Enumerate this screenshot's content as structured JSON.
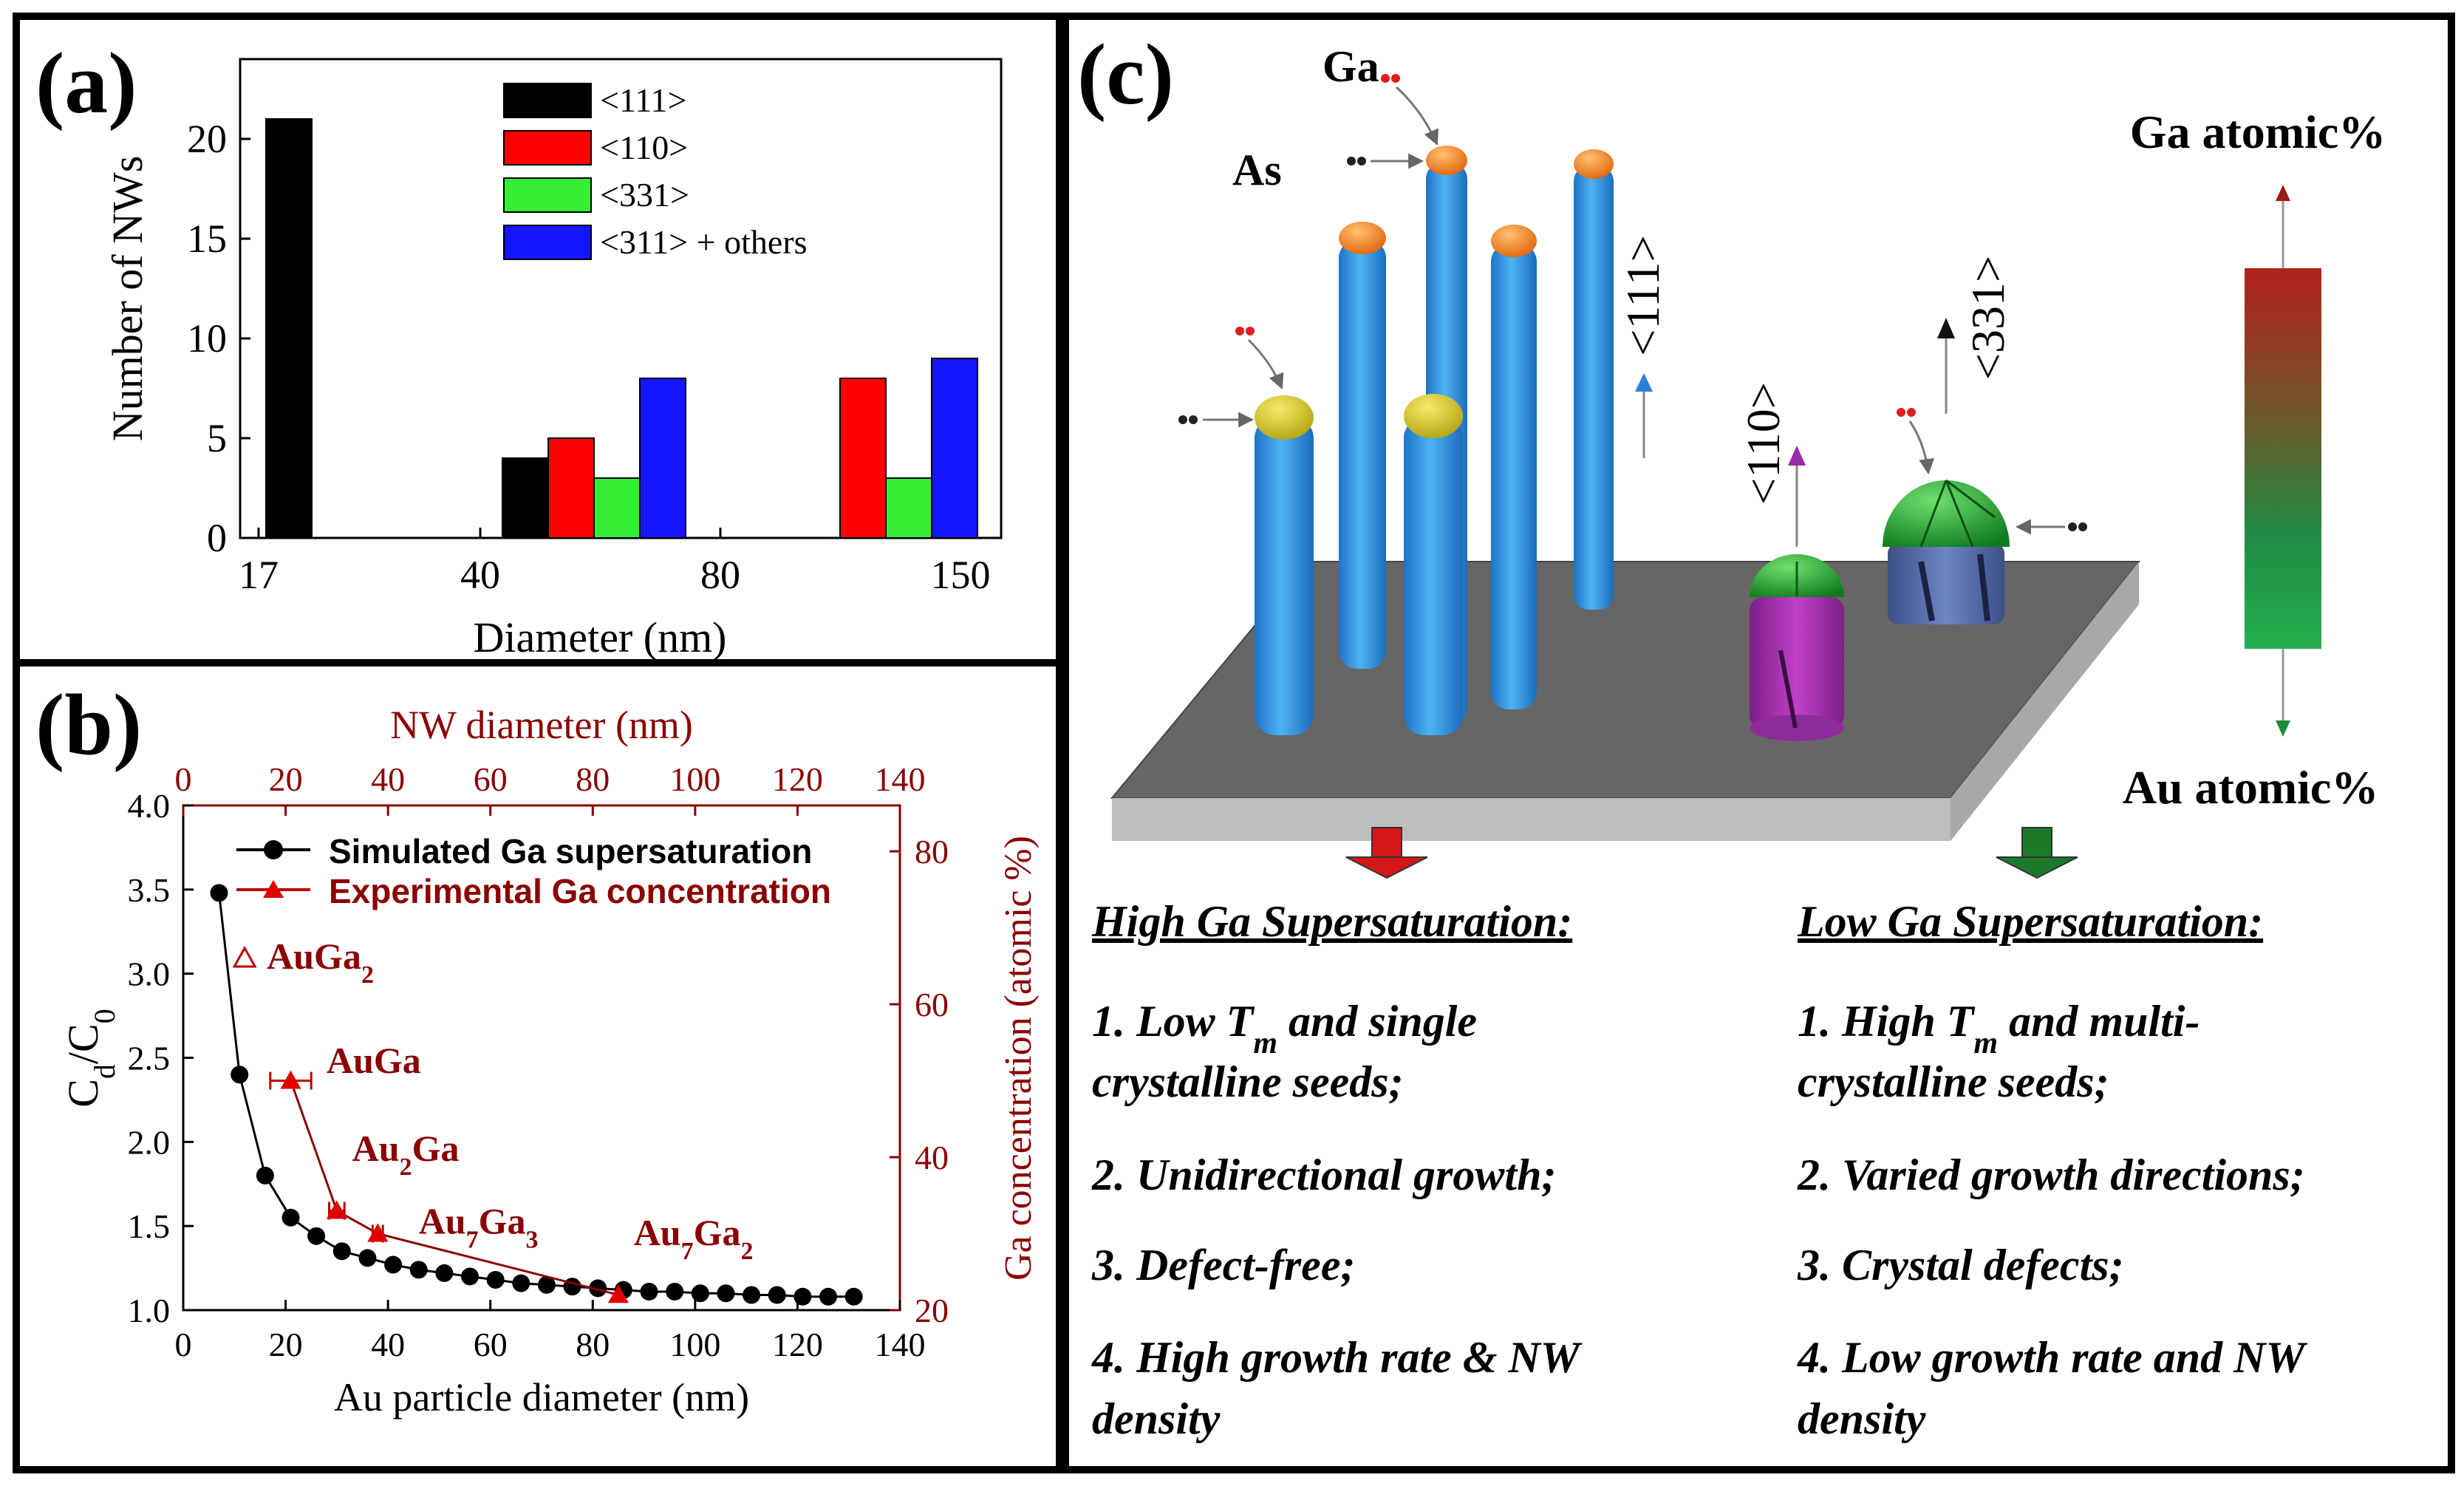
{
  "panels": {
    "a": {
      "label": "(a)"
    },
    "b": {
      "label": "(b)"
    },
    "c": {
      "label": "(c)"
    }
  },
  "chart_data": [
    {
      "panel": "a",
      "type": "bar",
      "xlabel": "Diameter (nm)",
      "ylabel": "Number of NWs",
      "ylim": [
        0,
        24
      ],
      "yticks": [
        0,
        5,
        10,
        15,
        20
      ],
      "xtick_labels": [
        "17",
        "40",
        "80",
        "150"
      ],
      "legend_position": "top-right",
      "series": [
        {
          "name": "<111>",
          "color": "#000000"
        },
        {
          "name": "<110>",
          "color": "#ff0000"
        },
        {
          "name": "<331>",
          "color": "#33ee33"
        },
        {
          "name": "<311> +  others",
          "color": "#1515ff"
        }
      ],
      "groups": [
        {
          "range": "17-40",
          "values": [
            21,
            0,
            0,
            0
          ]
        },
        {
          "range": "40-80",
          "values": [
            4,
            5,
            3,
            8
          ]
        },
        {
          "range": "80-150",
          "values": [
            0,
            8,
            3,
            9
          ]
        }
      ]
    },
    {
      "panel": "b",
      "type": "line",
      "xlabel": "Au particle diameter (nm)",
      "ylabel": "Cd/C0",
      "x2label": "NW diameter (nm)",
      "y2label": "Ga concentration (atomic %)",
      "xlim": [
        0,
        140
      ],
      "ylim": [
        1.0,
        4.0
      ],
      "y2lim": [
        20,
        86
      ],
      "xticks": [
        0,
        20,
        40,
        60,
        80,
        100,
        120,
        140
      ],
      "yticks": [
        1.0,
        1.5,
        2.0,
        2.5,
        3.0,
        3.5,
        4.0
      ],
      "y2ticks": [
        20,
        40,
        60,
        80
      ],
      "series": [
        {
          "name": "Simulated Ga supersaturation",
          "color": "#000000",
          "axis": "left",
          "x": [
            7,
            11,
            16,
            21,
            26,
            31,
            36,
            41,
            46,
            51,
            56,
            61,
            66,
            71,
            76,
            81,
            86,
            91,
            96,
            101,
            106,
            111,
            116,
            121,
            126,
            131
          ],
          "y": [
            3.48,
            2.4,
            1.8,
            1.55,
            1.44,
            1.35,
            1.31,
            1.27,
            1.24,
            1.22,
            1.2,
            1.18,
            1.16,
            1.15,
            1.14,
            1.13,
            1.12,
            1.11,
            1.11,
            1.1,
            1.1,
            1.09,
            1.09,
            1.08,
            1.08,
            1.08
          ]
        },
        {
          "name": "Experimental Ga concentration",
          "color": "#c00000",
          "axis": "right",
          "x": [
            21,
            30,
            38,
            85
          ],
          "y": [
            50,
            33,
            30,
            22
          ],
          "xerr": [
            4,
            1.5,
            1,
            0
          ]
        }
      ],
      "annotations": [
        {
          "text": "AuGa",
          "sub": "2",
          "order": "base-sub",
          "marker_x": 12,
          "marker_y": 66
        },
        {
          "text": "AuGa",
          "sub": "",
          "order": "plain",
          "x": 28,
          "y": 51
        },
        {
          "text": "Au",
          "sub": "2",
          "tail": "Ga",
          "x": 33,
          "y": 39.5
        },
        {
          "text": "Au",
          "sub": "7",
          "tail": "Ga",
          "sub2": "3",
          "x": 46,
          "y": 30
        },
        {
          "text": "Au",
          "sub": "7",
          "tail": "Ga",
          "sub2": "2",
          "x": 88,
          "y": 28.5
        }
      ]
    }
  ],
  "diagram": {
    "ga_label": "Ga",
    "as_label": "As",
    "dir_111": "<111>",
    "dir_110": "<110>",
    "dir_331": "<331>",
    "bar_top_label": "Ga atomic%",
    "bar_bottom_label": "Au atomic%",
    "high": {
      "title": "High Ga Supersaturation:",
      "items": [
        {
          "pre": "1. Low T",
          "sub": "m",
          "post": " and single",
          "line2": "crystalline seeds;"
        },
        {
          "pre": "2. Unidirectional growth;"
        },
        {
          "pre": "3. Defect-free;"
        },
        {
          "pre": "4. High growth rate & NW",
          "line2": "density"
        }
      ]
    },
    "low": {
      "title": "Low Ga Supersaturation:",
      "items": [
        {
          "pre": "1. High T",
          "sub": "m",
          "post": " and multi-",
          "line2": "crystalline seeds;"
        },
        {
          "pre": "2. Varied growth directions;"
        },
        {
          "pre": "3. Crystal defects;"
        },
        {
          "pre": "4. Low growth rate and NW",
          "line2": "density"
        }
      ]
    }
  }
}
